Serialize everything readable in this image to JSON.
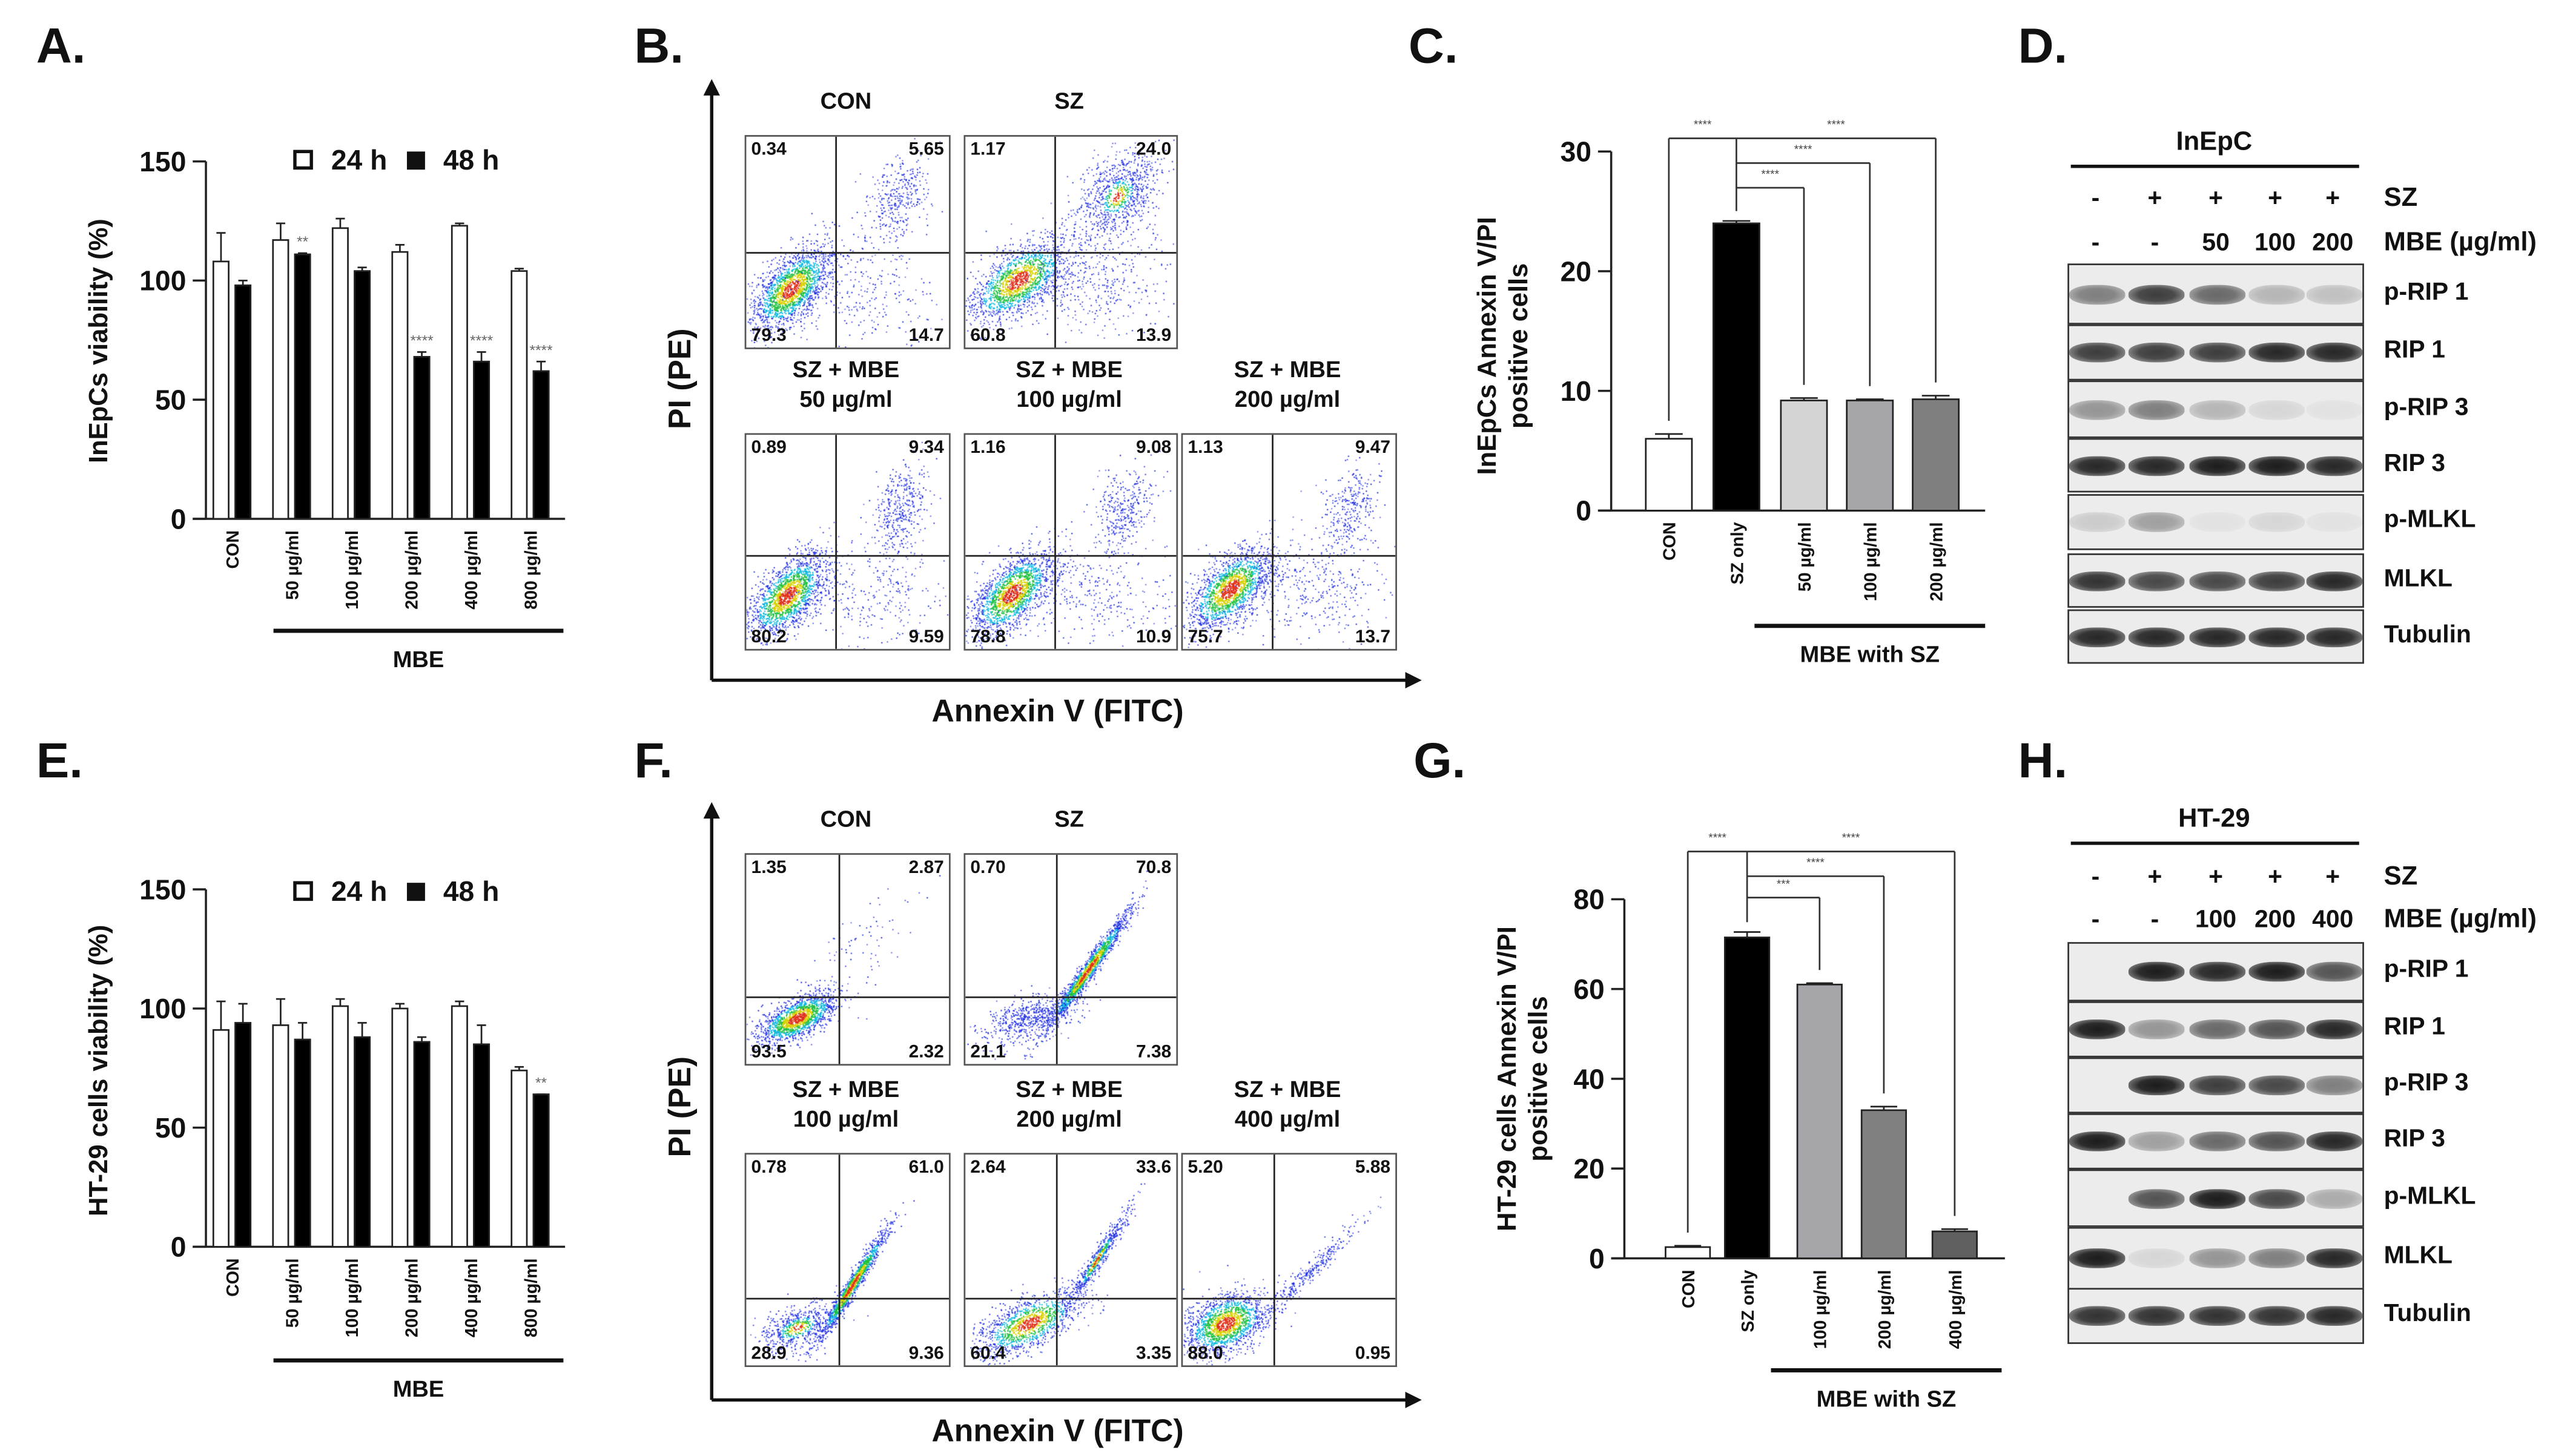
{
  "panel_labels": {
    "A": "A.",
    "B": "B.",
    "C": "C.",
    "D": "D.",
    "E": "E.",
    "F": "F.",
    "G": "G.",
    "H": "H."
  },
  "chart_data": [
    {
      "id": "A",
      "type": "bar",
      "ylabel": [
        "InEpCs viability (%)"
      ],
      "ylim": [
        0,
        150
      ],
      "yticks": [
        "0",
        "50",
        "100",
        "150"
      ],
      "categories": [
        "CON",
        "50 µg/ml",
        "100 µg/ml",
        "200 µg/ml",
        "400 µg/ml",
        "800 µg/ml"
      ],
      "group_label": "MBE",
      "legend": [
        "24 h",
        "48 h"
      ],
      "series": [
        {
          "name": "24 h",
          "color": "#ffffff",
          "values": [
            108,
            117,
            122,
            112,
            123,
            104
          ],
          "errors": [
            12,
            7,
            4,
            3,
            1,
            1
          ]
        },
        {
          "name": "48 h",
          "color": "#000000",
          "values": [
            98,
            111,
            104,
            68,
            66,
            62
          ],
          "errors": [
            2,
            0.5,
            1.5,
            2,
            4,
            4
          ]
        }
      ],
      "significance": [
        "",
        "**",
        "",
        "****",
        "****",
        "****"
      ]
    },
    {
      "id": "C",
      "type": "bar",
      "ylabel": [
        "InEpCs Annexin  V/PI",
        "positive cells"
      ],
      "ylim": [
        0,
        30
      ],
      "yticks": [
        "0",
        "10",
        "20",
        "30"
      ],
      "categories": [
        "CON",
        "SZ only",
        "50 µg/ml",
        "100 µg/ml",
        "200 µg/ml"
      ],
      "group_label": "MBE with SZ",
      "values": [
        6,
        24,
        9.2,
        9.2,
        9.3
      ],
      "errors": [
        0.4,
        0.2,
        0.2,
        0.1,
        0.3
      ],
      "colors": [
        "#ffffff",
        "#000000",
        "#d4d4d4",
        "#a6a6aa",
        "#7f7f7f"
      ],
      "comparisons": [
        {
          "from": 1,
          "to": 0,
          "label": "****"
        },
        {
          "from": 1,
          "to": 2,
          "label": "****"
        },
        {
          "from": 1,
          "to": 3,
          "label": "****"
        },
        {
          "from": 1,
          "to": 4,
          "label": "****"
        }
      ]
    },
    {
      "id": "E",
      "type": "bar",
      "ylabel": [
        "HT-29 cells viability (%)"
      ],
      "ylim": [
        0,
        150
      ],
      "yticks": [
        "0",
        "50",
        "100",
        "150"
      ],
      "categories": [
        "CON",
        "50 µg/ml",
        "100 µg/ml",
        "200 µg/ml",
        "400 µg/ml",
        "800 µg/ml"
      ],
      "group_label": "MBE",
      "legend": [
        "24 h",
        "48 h"
      ],
      "series": [
        {
          "name": "24 h",
          "color": "#ffffff",
          "values": [
            91,
            93,
            101,
            100,
            101,
            74
          ],
          "errors": [
            12,
            11,
            3,
            2,
            2,
            1.5
          ]
        },
        {
          "name": "48 h",
          "color": "#000000",
          "values": [
            94,
            87,
            88,
            86,
            85,
            64
          ],
          "errors": [
            8,
            7,
            6,
            2,
            8,
            0
          ]
        }
      ],
      "significance": [
        "",
        "",
        "",
        "",
        "",
        "**"
      ]
    },
    {
      "id": "G",
      "type": "bar",
      "ylabel": [
        "HT-29 cells Annexin  V/PI",
        "positive cells"
      ],
      "ylim": [
        0,
        80
      ],
      "yticks": [
        "0",
        "20",
        "40",
        "60",
        "80"
      ],
      "categories": [
        "CON",
        "SZ only",
        "100 µg/ml",
        "200 µg/ml",
        "400 µg/ml"
      ],
      "group_label": "MBE with SZ",
      "values": [
        2.5,
        71.5,
        61,
        33,
        6
      ],
      "errors": [
        0.3,
        1.2,
        0.3,
        0.8,
        0.5
      ],
      "colors": [
        "#ffffff",
        "#000000",
        "#a6a6aa",
        "#808080",
        "#606060"
      ],
      "comparisons": [
        {
          "from": 1,
          "to": 0,
          "label": "****"
        },
        {
          "from": 1,
          "to": 2,
          "label": "***"
        },
        {
          "from": 1,
          "to": 3,
          "label": "****"
        },
        {
          "from": 1,
          "to": 4,
          "label": "****"
        }
      ]
    }
  ],
  "flow_B": {
    "ylabel": "PI (PE)",
    "xlabel": "Annexin V (FITC)",
    "plots": [
      {
        "title": [
          "CON"
        ],
        "ul": "0.34",
        "ur": "5.65",
        "ll": "79.3",
        "lr": "14.7"
      },
      {
        "title": [
          "SZ"
        ],
        "ul": "1.17",
        "ur": "24.0",
        "ll": "60.8",
        "lr": "13.9"
      },
      {
        "title": [
          "SZ + MBE",
          "50 µg/ml"
        ],
        "ul": "0.89",
        "ur": "9.34",
        "ll": "80.2",
        "lr": "9.59"
      },
      {
        "title": [
          "SZ + MBE",
          "100 µg/ml"
        ],
        "ul": "1.16",
        "ur": "9.08",
        "ll": "78.8",
        "lr": "10.9"
      },
      {
        "title": [
          "SZ + MBE",
          "200 µg/ml"
        ],
        "ul": "1.13",
        "ur": "9.47",
        "ll": "75.7",
        "lr": "13.7"
      }
    ]
  },
  "flow_F": {
    "ylabel": "PI (PE)",
    "xlabel": "Annexin V (FITC)",
    "plots": [
      {
        "title": [
          "CON"
        ],
        "ul": "1.35",
        "ur": "2.87",
        "ll": "93.5",
        "lr": "2.32"
      },
      {
        "title": [
          "SZ"
        ],
        "ul": "0.70",
        "ur": "70.8",
        "ll": "21.1",
        "lr": "7.38"
      },
      {
        "title": [
          "SZ + MBE",
          "100 µg/ml"
        ],
        "ul": "0.78",
        "ur": "61.0",
        "ll": "28.9",
        "lr": "9.36"
      },
      {
        "title": [
          "SZ + MBE",
          "200 µg/ml"
        ],
        "ul": "2.64",
        "ur": "33.6",
        "ll": "60.4",
        "lr": "3.35"
      },
      {
        "title": [
          "SZ + MBE",
          "400 µg/ml"
        ],
        "ul": "5.20",
        "ur": "5.88",
        "ll": "88.0",
        "lr": "0.95"
      }
    ]
  },
  "blot_D": {
    "cell_line": "InEpC",
    "treatments": [
      {
        "label": "SZ",
        "values": [
          "-",
          "+",
          "+",
          "+",
          "+"
        ]
      },
      {
        "label": "MBE (µg/ml)",
        "values": [
          "-",
          "-",
          "50",
          "100",
          "200"
        ]
      }
    ],
    "bands": [
      {
        "label": "p-RIP 1",
        "intensity": [
          0.5,
          0.8,
          0.6,
          0.25,
          0.2
        ]
      },
      {
        "label": "RIP 1",
        "intensity": [
          0.8,
          0.8,
          0.8,
          0.9,
          0.9
        ]
      },
      {
        "label": "p-RIP 3",
        "intensity": [
          0.4,
          0.5,
          0.25,
          0.1,
          0.05
        ]
      },
      {
        "label": "RIP 3",
        "intensity": [
          0.9,
          0.9,
          0.95,
          0.95,
          0.9
        ]
      },
      {
        "label": "p-MLKL",
        "intensity": [
          0.15,
          0.35,
          0.05,
          0.1,
          0.05
        ]
      },
      {
        "label": "MLKL",
        "intensity": [
          0.85,
          0.75,
          0.75,
          0.8,
          0.9
        ]
      },
      {
        "label": "Tubulin",
        "intensity": [
          0.9,
          0.9,
          0.9,
          0.9,
          0.9
        ]
      }
    ]
  },
  "blot_H": {
    "cell_line": "HT-29",
    "treatments": [
      {
        "label": "SZ",
        "values": [
          "-",
          "+",
          "+",
          "+",
          "+"
        ]
      },
      {
        "label": "MBE (µg/ml)",
        "values": [
          "-",
          "-",
          "100",
          "200",
          "400"
        ]
      }
    ],
    "bands": [
      {
        "label": "p-RIP 1",
        "intensity": [
          0,
          0.95,
          0.9,
          0.95,
          0.7
        ]
      },
      {
        "label": "RIP 1",
        "intensity": [
          0.95,
          0.4,
          0.6,
          0.7,
          0.9
        ]
      },
      {
        "label": "p-RIP 3",
        "intensity": [
          0,
          0.95,
          0.8,
          0.75,
          0.5
        ]
      },
      {
        "label": "RIP 3",
        "intensity": [
          0.95,
          0.35,
          0.6,
          0.7,
          0.9
        ]
      },
      {
        "label": "p-MLKL",
        "intensity": [
          0,
          0.7,
          0.95,
          0.75,
          0.3
        ]
      },
      {
        "label": "MLKL",
        "intensity": [
          0.95,
          0.1,
          0.4,
          0.5,
          0.9
        ]
      },
      {
        "label": "Tubulin",
        "intensity": [
          0.85,
          0.85,
          0.85,
          0.85,
          0.9
        ]
      }
    ]
  }
}
